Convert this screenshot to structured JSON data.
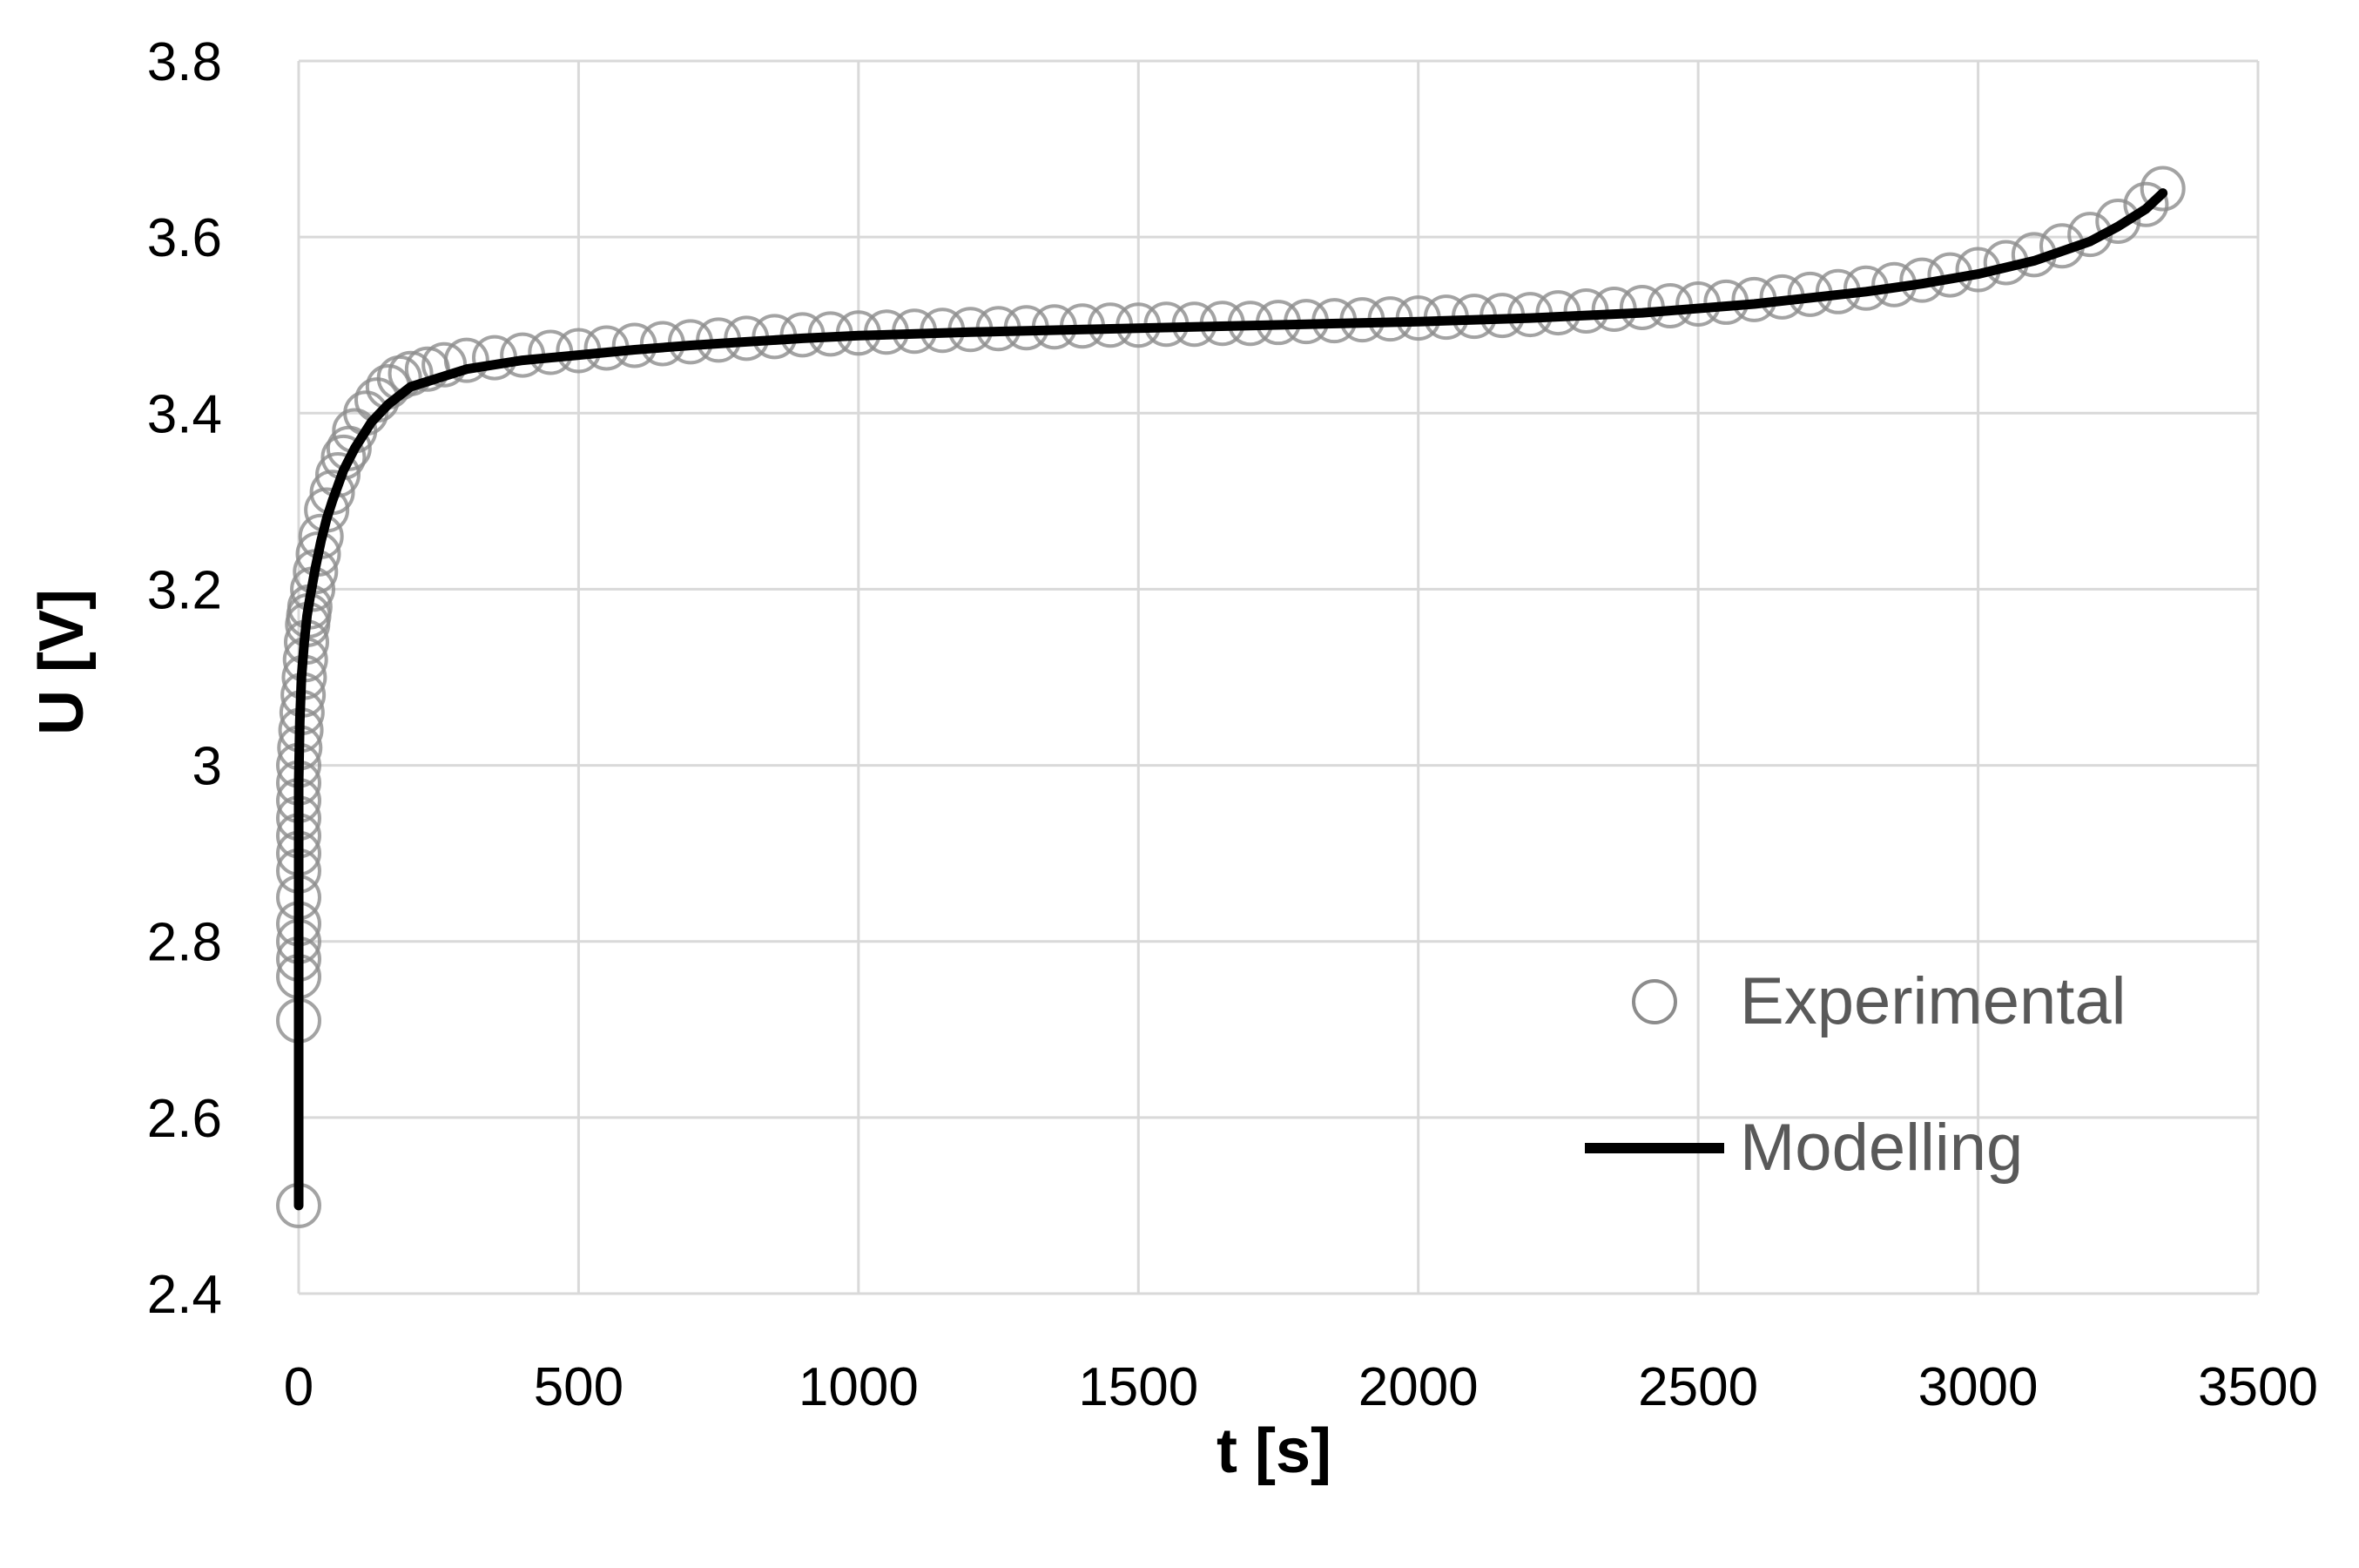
{
  "chart_data": {
    "type": "scatter",
    "title": "",
    "xlabel": "t [s]",
    "ylabel": "U [V]",
    "xlim": [
      0,
      3500
    ],
    "ylim": [
      2.4,
      3.8
    ],
    "xticks": [
      0,
      500,
      1000,
      1500,
      2000,
      2500,
      3000,
      3500
    ],
    "yticks": [
      2.4,
      2.6,
      2.8,
      3.0,
      3.2,
      3.4,
      3.6,
      3.8
    ],
    "xtick_labels": [
      "0",
      "500",
      "1000",
      "1500",
      "2000",
      "2500",
      "3000",
      "3500"
    ],
    "ytick_labels": [
      "2.4",
      "2.6",
      "2.8",
      "3",
      "3.2",
      "3.4",
      "3.6",
      "3.8"
    ],
    "grid": true,
    "legend_position": "bottom-right",
    "series": [
      {
        "name": "Experimental",
        "style": "open-circle",
        "color": "#8c8c8c",
        "x": [
          0,
          0,
          0,
          0,
          0,
          0,
          0,
          0,
          0,
          0,
          0,
          0,
          0,
          0,
          2,
          4,
          6,
          8,
          10,
          12,
          14,
          16,
          18,
          20,
          25,
          30,
          35,
          40,
          50,
          60,
          70,
          80,
          90,
          100,
          120,
          140,
          160,
          180,
          200,
          230,
          260,
          300,
          350,
          400,
          450,
          500,
          550,
          600,
          650,
          700,
          750,
          800,
          850,
          900,
          950,
          1000,
          1050,
          1100,
          1150,
          1200,
          1250,
          1300,
          1350,
          1400,
          1450,
          1500,
          1550,
          1600,
          1650,
          1700,
          1750,
          1800,
          1850,
          1900,
          1950,
          2000,
          2050,
          2100,
          2150,
          2200,
          2250,
          2300,
          2350,
          2400,
          2450,
          2500,
          2550,
          2600,
          2650,
          2700,
          2750,
          2800,
          2850,
          2900,
          2950,
          3000,
          3050,
          3100,
          3150,
          3200,
          3250,
          3300,
          3330
        ],
        "y": [
          2.5,
          2.71,
          2.76,
          2.78,
          2.8,
          2.82,
          2.85,
          2.88,
          2.9,
          2.92,
          2.94,
          2.96,
          2.98,
          3.0,
          3.02,
          3.04,
          3.06,
          3.08,
          3.1,
          3.12,
          3.14,
          3.16,
          3.17,
          3.18,
          3.2,
          3.22,
          3.24,
          3.26,
          3.29,
          3.31,
          3.33,
          3.35,
          3.36,
          3.38,
          3.4,
          3.415,
          3.43,
          3.44,
          3.445,
          3.45,
          3.455,
          3.46,
          3.463,
          3.466,
          3.469,
          3.471,
          3.474,
          3.477,
          3.479,
          3.481,
          3.483,
          3.485,
          3.487,
          3.489,
          3.49,
          3.491,
          3.492,
          3.493,
          3.494,
          3.495,
          3.496,
          3.497,
          3.498,
          3.499,
          3.5,
          3.5,
          3.501,
          3.501,
          3.502,
          3.502,
          3.503,
          3.504,
          3.505,
          3.506,
          3.507,
          3.508,
          3.509,
          3.51,
          3.511,
          3.512,
          3.514,
          3.516,
          3.518,
          3.52,
          3.522,
          3.524,
          3.526,
          3.529,
          3.532,
          3.535,
          3.538,
          3.542,
          3.546,
          3.551,
          3.557,
          3.563,
          3.571,
          3.58,
          3.59,
          3.603,
          3.618,
          3.637,
          3.655
        ]
      },
      {
        "name": "Modelling",
        "style": "line",
        "color": "#000000",
        "x": [
          0,
          0,
          2,
          5,
          10,
          15,
          20,
          30,
          40,
          50,
          60,
          80,
          100,
          130,
          160,
          200,
          250,
          300,
          400,
          500,
          600,
          700,
          800,
          900,
          1000,
          1200,
          1400,
          1600,
          1800,
          2000,
          2200,
          2400,
          2600,
          2800,
          2900,
          3000,
          3100,
          3200,
          3250,
          3300,
          3330
        ],
        "y": [
          2.5,
          2.98,
          3.05,
          3.1,
          3.14,
          3.17,
          3.19,
          3.225,
          3.255,
          3.28,
          3.3,
          3.335,
          3.36,
          3.39,
          3.41,
          3.43,
          3.44,
          3.45,
          3.46,
          3.466,
          3.472,
          3.477,
          3.481,
          3.485,
          3.488,
          3.492,
          3.495,
          3.498,
          3.501,
          3.504,
          3.508,
          3.514,
          3.524,
          3.538,
          3.547,
          3.558,
          3.573,
          3.595,
          3.612,
          3.632,
          3.65
        ]
      }
    ]
  }
}
